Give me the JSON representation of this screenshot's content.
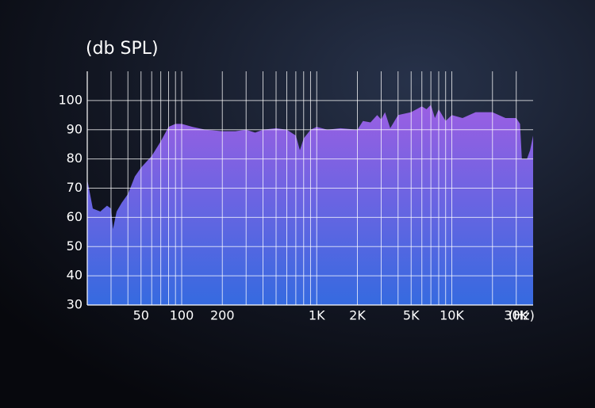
{
  "chart_data": {
    "type": "area",
    "y_label": "(db SPL)",
    "x_unit": "(Hz)",
    "log_x": true,
    "color_top": "#9b5fe3",
    "color_bottom": "#356ae0",
    "x": [
      20,
      22,
      25,
      28,
      30,
      31,
      33,
      36,
      40,
      45,
      50,
      60,
      70,
      80,
      90,
      100,
      120,
      150,
      200,
      250,
      300,
      350,
      400,
      500,
      600,
      700,
      750,
      800,
      900,
      1000,
      1200,
      1500,
      2000,
      2200,
      2500,
      2800,
      3000,
      3200,
      3500,
      4000,
      5000,
      6000,
      6500,
      7000,
      7500,
      8000,
      9000,
      10000,
      12000,
      15000,
      20000,
      25000,
      30000,
      32000,
      33000,
      36000,
      38000,
      40000
    ],
    "values": [
      73,
      63,
      62,
      64,
      63,
      56,
      62,
      65,
      68,
      74,
      77,
      81,
      86,
      91,
      92,
      92,
      91,
      90,
      89.5,
      89.5,
      90,
      89,
      90,
      90.5,
      90,
      88,
      83,
      87,
      90,
      91,
      90,
      90.5,
      90,
      93,
      92.5,
      95,
      93.5,
      96,
      90.5,
      95,
      96,
      98,
      97,
      98.5,
      94,
      97,
      93,
      95,
      94,
      96,
      96,
      94,
      94,
      92,
      80,
      80,
      83,
      88
    ],
    "xlim": [
      20,
      40000
    ],
    "ylim": [
      30,
      110
    ],
    "yticks": [
      30,
      40,
      50,
      60,
      70,
      80,
      90,
      100
    ],
    "xticks": [
      50,
      100,
      200,
      {
        "value": 1000,
        "label": "1K"
      },
      {
        "value": 2000,
        "label": "2K"
      },
      {
        "value": 5000,
        "label": "5K"
      },
      {
        "value": 10000,
        "label": "10K"
      },
      {
        "value": 30000,
        "label": "30K"
      }
    ],
    "xgrid": [
      30,
      40,
      50,
      60,
      70,
      80,
      90,
      100,
      200,
      300,
      400,
      500,
      600,
      700,
      800,
      900,
      1000,
      2000,
      3000,
      4000,
      5000,
      6000,
      7000,
      8000,
      9000,
      10000,
      20000,
      30000
    ],
    "grid": true
  }
}
